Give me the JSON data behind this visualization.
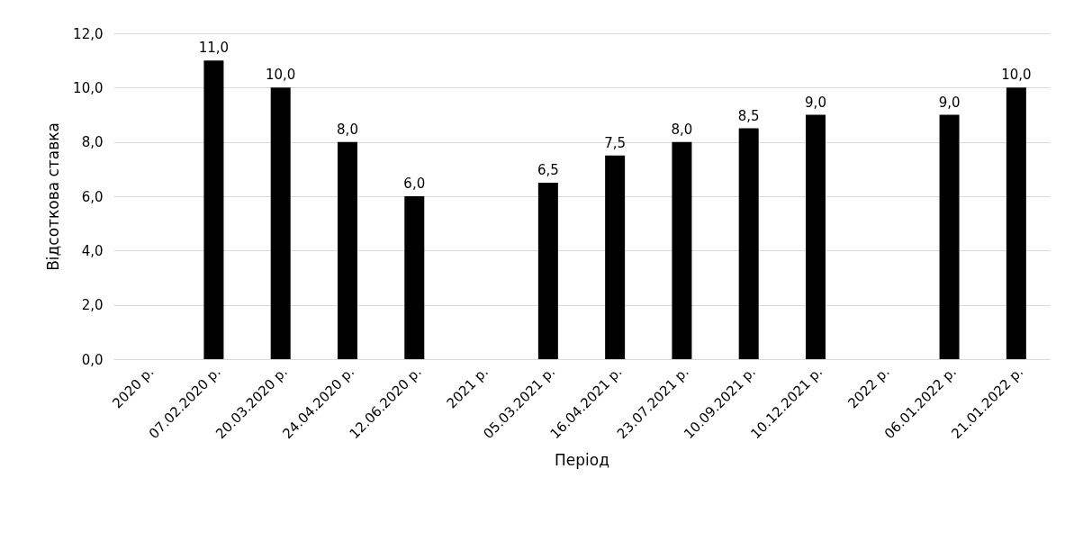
{
  "chart_data": {
    "type": "bar",
    "xlabel": "Період",
    "ylabel": "Відсоткова ставка",
    "categories": [
      "2020 р.",
      "07.02.2020 р.",
      "20.03.2020 р.",
      "24.04.2020 р.",
      "12.06.2020 р.",
      "2021 р.",
      "05.03.2021 р.",
      "16.04.2021 р.",
      "23.07.2021 р.",
      "10.09.2021 р.",
      "10.12.2021 р.",
      "2022 р.",
      "06.01.2022 р.",
      "21.01.2022 р."
    ],
    "values": [
      null,
      11.0,
      10.0,
      8.0,
      6.0,
      null,
      6.5,
      7.5,
      8.0,
      8.5,
      9.0,
      null,
      9.0,
      10.0
    ],
    "value_labels": [
      null,
      "11,0",
      "10,0",
      "8,0",
      "6,0",
      null,
      "6,5",
      "7,5",
      "8,0",
      "8,5",
      "9,0",
      null,
      "9,0",
      "10,0"
    ],
    "color": "#000000",
    "ylim": [
      0,
      12
    ],
    "yticks": [
      {
        "value": 0,
        "label": "0,0"
      },
      {
        "value": 2,
        "label": "2,0"
      },
      {
        "value": 4,
        "label": "4,0"
      },
      {
        "value": 6,
        "label": "6,0"
      },
      {
        "value": 8,
        "label": "8,0"
      },
      {
        "value": 10,
        "label": "10,0"
      },
      {
        "value": 12,
        "label": "12,0"
      }
    ],
    "grid": "y"
  }
}
